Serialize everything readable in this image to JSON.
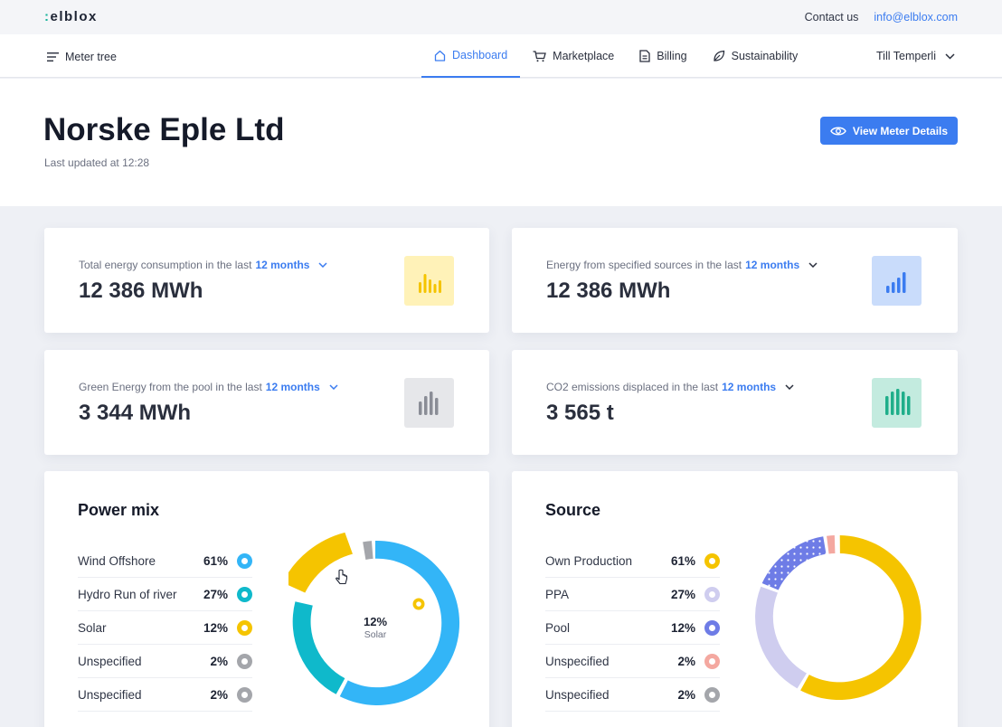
{
  "topbar": {
    "logo_prefix": ":",
    "logo_text": "elblox",
    "contact": "Contact us",
    "email": "info@elblox.com"
  },
  "nav": {
    "meter_tree": "Meter tree",
    "tabs": [
      {
        "label": "Dashboard",
        "icon": "home-icon",
        "active": true
      },
      {
        "label": "Marketplace",
        "icon": "cart-icon"
      },
      {
        "label": "Billing",
        "icon": "document-icon"
      },
      {
        "label": "Sustainability",
        "icon": "leaf-icon"
      }
    ],
    "user": "Till Temperli"
  },
  "hero": {
    "company": "Norske Eple Ltd",
    "updated": "Last updated at 12:28",
    "view_button": "View Meter Details"
  },
  "stats": [
    {
      "label": "Total energy consumption in the last",
      "period": "12 months",
      "value": "12 386 MWh",
      "icon": "bar-chart-icon",
      "color": "#f5c400",
      "bg": "#fff2b8"
    },
    {
      "label": "Energy from specified sources in the last",
      "period": "12 months",
      "value": "12 386 MWh",
      "icon": "bar-chart-icon",
      "color": "#3b7cf0",
      "bg": "#c9dcfb"
    },
    {
      "label": "Green Energy from the pool in the last",
      "period": "12 months",
      "value": "3 344 MWh",
      "icon": "bar-chart-icon",
      "color": "#8a8d96",
      "bg": "#e6e7ea"
    },
    {
      "label": "CO2 emissions displaced in the last",
      "period": "12 months",
      "value": "3 565 t",
      "icon": "bar-chart-icon",
      "color": "#1fae8a",
      "bg": "#c3ebdf"
    }
  ],
  "power_mix": {
    "title": "Power mix",
    "items": [
      {
        "name": "Wind Offshore",
        "pct": "61%",
        "color": "#33b5f7"
      },
      {
        "name": "Hydro Run of river",
        "pct": "27%",
        "color": "#0fb9cb"
      },
      {
        "name": "Solar",
        "pct": "12%",
        "color": "#f5c400"
      },
      {
        "name": "Unspecified",
        "pct": "2%",
        "color": "#a4a6ab"
      },
      {
        "name": "Unspecified",
        "pct": "2%",
        "color": "#a4a6ab"
      }
    ],
    "center_value": "12%",
    "center_label": "Solar"
  },
  "source": {
    "title": "Source",
    "items": [
      {
        "name": "Own Production",
        "pct": "61%",
        "color": "#f5c400"
      },
      {
        "name": "PPA",
        "pct": "27%",
        "color": "#cfcdef"
      },
      {
        "name": "Pool",
        "pct": "12%",
        "color": "#6e7ce6"
      },
      {
        "name": "Unspecified",
        "pct": "2%",
        "color": "#f4a8a0"
      },
      {
        "name": "Unspecified",
        "pct": "2%",
        "color": "#a4a6ab"
      }
    ]
  }
}
